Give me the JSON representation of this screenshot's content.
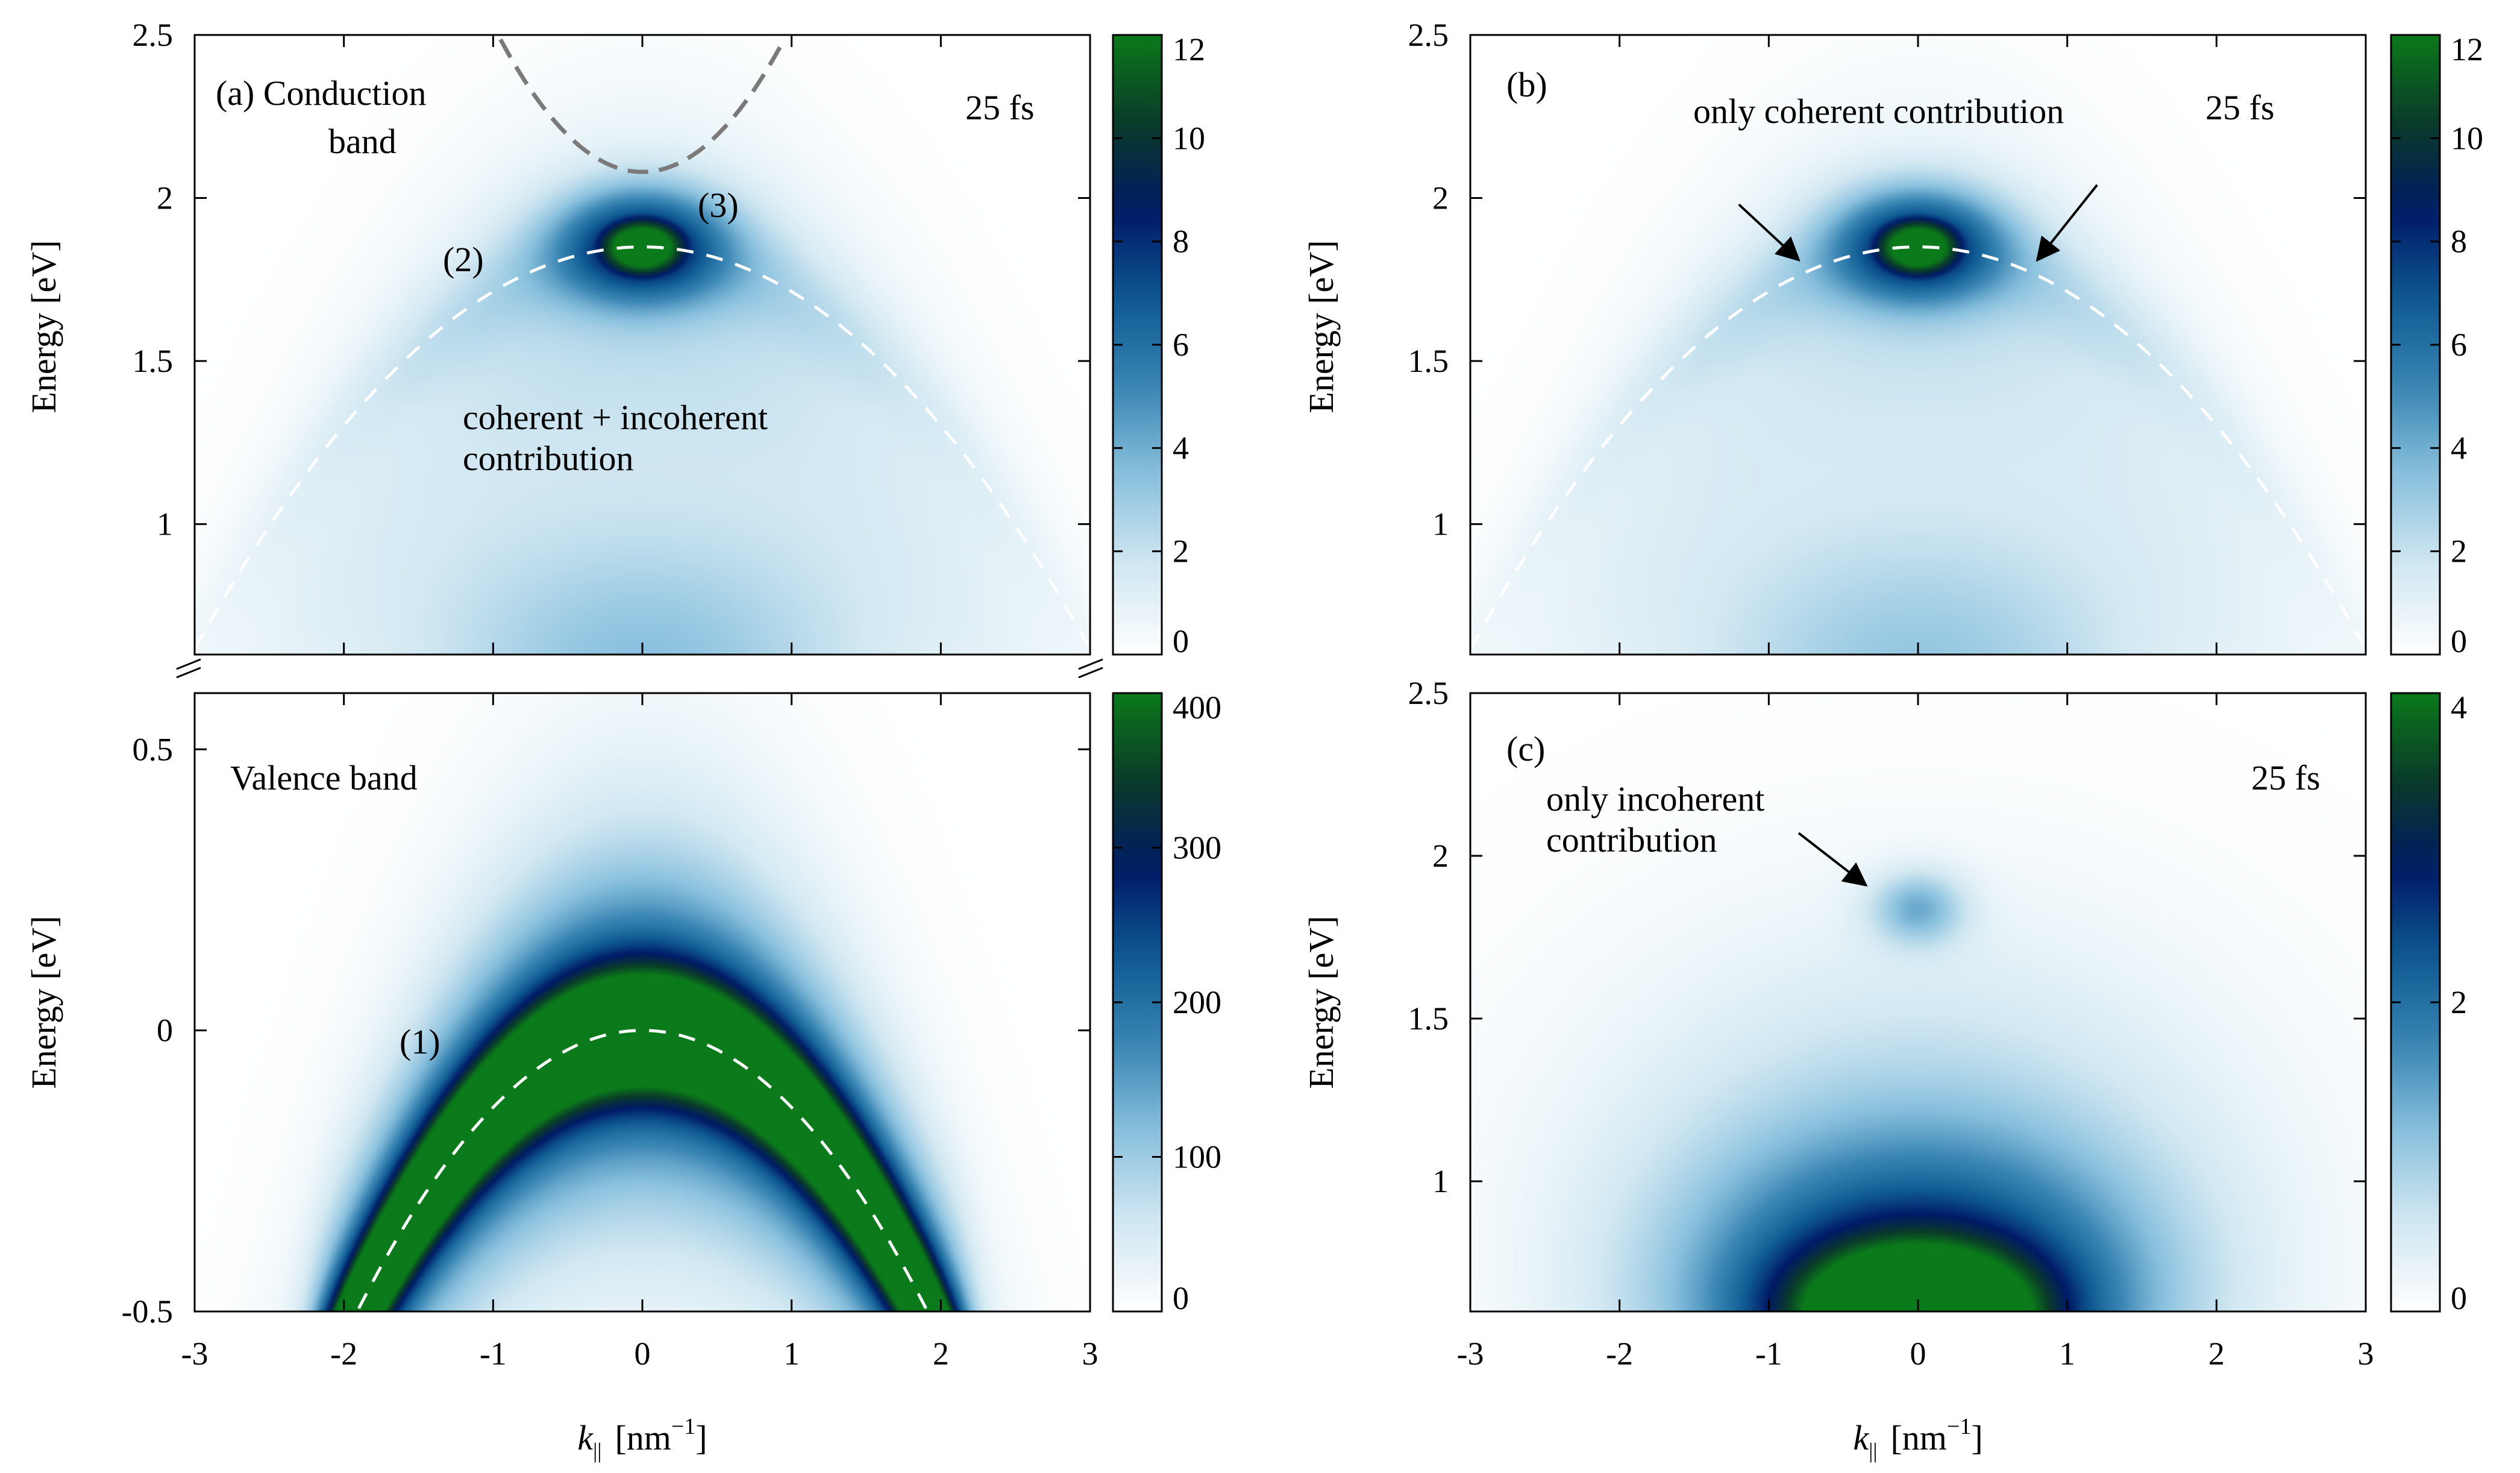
{
  "colors": {
    "ramp": [
      "#ffffff",
      "#d2e8f2",
      "#8cc2df",
      "#3a86b4",
      "#0f5a92",
      "#001a66",
      "#0a3a2a",
      "#0a7a1a"
    ],
    "dash_white": "#ffffff",
    "dash_gray": "#7a7a7a",
    "axis": "#000000"
  },
  "chart_data": [
    {
      "id": "a",
      "type": "heatmap",
      "title": "(a) Conduction band",
      "title_line1": "(a) Conduction",
      "title_line2": "band",
      "time_label": "25 fs",
      "annotation_line1": "coherent + incoherent",
      "annotation_line2": "contribution",
      "markers": [
        "(2)",
        "(3)"
      ],
      "xlim": [
        -3,
        3
      ],
      "ylim": [
        0.6,
        2.5
      ],
      "xticks": [
        "-3",
        "-2",
        "-1",
        "0",
        "1",
        "2",
        "3"
      ],
      "yticks": [
        "1",
        "1.5",
        "2",
        "2.5"
      ],
      "ylabel": "Energy [eV]",
      "colorbar": {
        "min": 0,
        "max": 12,
        "ticks": [
          "0",
          "2",
          "4",
          "6",
          "8",
          "10",
          "12"
        ]
      },
      "curves": [
        {
          "name": "valence-band-shifted",
          "style": "white-dashed",
          "vertex_E": 1.85,
          "curvature": 0.137
        },
        {
          "name": "conduction-band",
          "style": "gray-dashed",
          "vertex_E": 2.08,
          "curvature": 0.45
        }
      ]
    },
    {
      "id": "b",
      "type": "heatmap",
      "title": "(b)",
      "time_label": "25 fs",
      "annotation": "only coherent contribution",
      "xlim": [
        -3,
        3
      ],
      "ylim": [
        0.6,
        2.5
      ],
      "xticks": [
        "-3",
        "-2",
        "-1",
        "0",
        "1",
        "2",
        "3"
      ],
      "yticks": [
        "1",
        "1.5",
        "2",
        "2.5"
      ],
      "ylabel": "Energy [eV]",
      "colorbar": {
        "min": 0,
        "max": 12,
        "ticks": [
          "0",
          "2",
          "4",
          "6",
          "8",
          "10",
          "12"
        ]
      },
      "curves": [
        {
          "name": "valence-band-shifted",
          "style": "white-dashed",
          "vertex_E": 1.85,
          "curvature": 0.137
        }
      ],
      "arrows": [
        {
          "from": [
            -1.2,
            1.98
          ],
          "to": [
            -0.8,
            1.81
          ]
        },
        {
          "from": [
            1.2,
            2.04
          ],
          "to": [
            0.8,
            1.81
          ]
        }
      ]
    },
    {
      "id": "valence",
      "type": "heatmap",
      "title": "Valence band",
      "marker": "(1)",
      "xlim": [
        -3,
        3
      ],
      "ylim": [
        -0.5,
        0.6
      ],
      "xticks": [
        "-3",
        "-2",
        "-1",
        "0",
        "1",
        "2",
        "3"
      ],
      "yticks": [
        "-0.5",
        "0",
        "0.5"
      ],
      "xlabel": "k",
      "xlabel_sub": "||",
      "xlabel_unit": "[nm",
      "xlabel_sup": "−1",
      "xlabel_end": "]",
      "ylabel": "Energy [eV]",
      "colorbar": {
        "min": 0,
        "max": 400,
        "ticks": [
          "0",
          "100",
          "200",
          "300",
          "400"
        ]
      },
      "curves": [
        {
          "name": "valence-band",
          "style": "white-dashed",
          "vertex_E": 0.0,
          "curvature": 0.137
        }
      ]
    },
    {
      "id": "c",
      "type": "heatmap",
      "title": "(c)",
      "time_label": "25 fs",
      "annotation_line1": "only incoherent",
      "annotation_line2": "contribution",
      "xlim": [
        -3,
        3
      ],
      "ylim": [
        0.6,
        2.5
      ],
      "xticks": [
        "-3",
        "-2",
        "-1",
        "0",
        "1",
        "2",
        "3"
      ],
      "yticks": [
        "1",
        "1.5",
        "2",
        "2.5"
      ],
      "xlabel": "k",
      "xlabel_sub": "||",
      "xlabel_unit": "[nm",
      "xlabel_sup": "−1",
      "xlabel_end": "]",
      "ylabel": "Energy [eV]",
      "colorbar": {
        "min": 0,
        "max": 4,
        "ticks": [
          "0",
          "2",
          "4"
        ]
      },
      "arrows": [
        {
          "from": [
            -0.8,
            2.07
          ],
          "to": [
            -0.35,
            1.91
          ]
        }
      ]
    }
  ]
}
